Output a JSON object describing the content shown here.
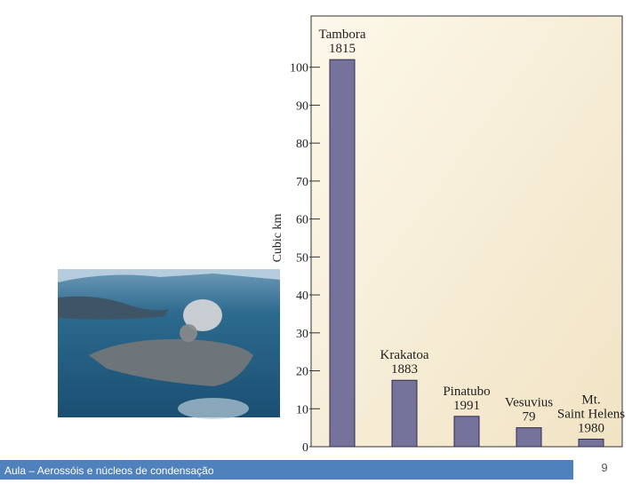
{
  "chart_data": {
    "type": "bar",
    "categories": [
      [
        "Tambora",
        "1815"
      ],
      [
        "Krakatoa",
        "1883"
      ],
      [
        "Pinatubo",
        "1991"
      ],
      [
        "Vesuvius",
        "79"
      ],
      [
        "Mt.",
        "Saint Helens",
        "1980"
      ]
    ],
    "values": [
      102,
      17.5,
      8,
      5,
      2
    ],
    "color": "#75739c",
    "y_label": "Cubic km",
    "ylim": [
      0,
      113.5
    ],
    "yticks": [
      0,
      10,
      20,
      30,
      40,
      50,
      60,
      70,
      80,
      90,
      100
    ]
  },
  "footer": {
    "text": "Aula – Aerossóis e núcleos de condensação",
    "page": "9"
  }
}
